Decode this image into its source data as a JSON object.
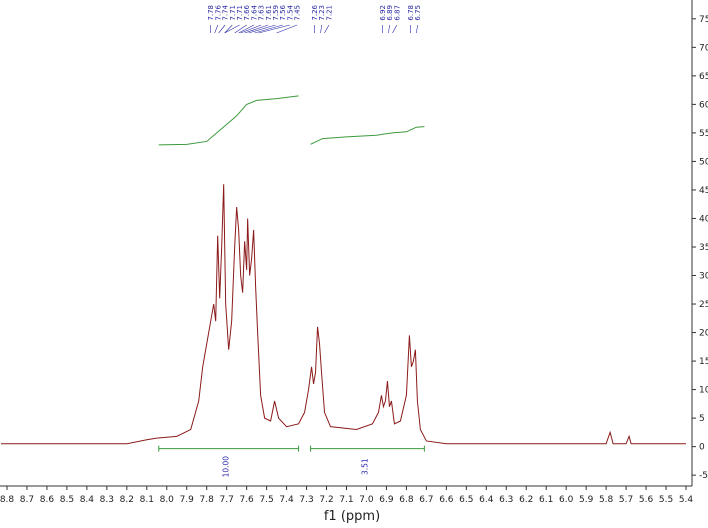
{
  "chart_data": {
    "type": "line",
    "x_label": "f1 (ppm)",
    "xlim": [
      8.835,
      5.38
    ],
    "ylim": [
      -6.9,
      78.3
    ],
    "xticks": [
      8.8,
      8.7,
      8.6,
      8.5,
      8.4,
      8.3,
      8.2,
      8.1,
      {
        "value": 8,
        "label": "8.0"
      },
      7.9,
      7.8,
      7.7,
      7.6,
      7.5,
      7.4,
      7.3,
      7.2,
      7.1,
      {
        "value": 7,
        "label": "7.0"
      },
      6.9,
      6.8,
      6.7,
      6.6,
      6.5,
      6.4,
      6.3,
      6.2,
      6.1,
      {
        "value": 6,
        "label": "6.0"
      },
      5.9,
      5.8,
      5.7,
      5.6,
      5.5,
      5.4
    ],
    "yticks": [
      -5,
      0,
      5,
      10,
      15,
      20,
      25,
      30,
      35,
      40,
      45,
      50,
      55,
      60,
      65,
      70,
      75
    ],
    "x": [
      8.83,
      8.2,
      8.1,
      8.05,
      7.95,
      7.88,
      7.84,
      7.82,
      7.8,
      7.78,
      7.765,
      7.755,
      7.745,
      7.735,
      7.725,
      7.715,
      7.705,
      7.69,
      7.675,
      7.66,
      7.65,
      7.64,
      7.63,
      7.62,
      7.61,
      7.6,
      7.595,
      7.585,
      7.575,
      7.565,
      7.555,
      7.545,
      7.53,
      7.51,
      7.48,
      7.46,
      7.44,
      7.4,
      7.34,
      7.31,
      7.29,
      7.275,
      7.265,
      7.255,
      7.245,
      7.235,
      7.225,
      7.21,
      7.18,
      7.05,
      6.97,
      6.94,
      6.925,
      6.915,
      6.905,
      6.895,
      6.885,
      6.875,
      6.86,
      6.83,
      6.8,
      6.79,
      6.785,
      6.775,
      6.765,
      6.755,
      6.745,
      6.73,
      6.7,
      6.6,
      5.8,
      5.78,
      5.765,
      5.7,
      5.685,
      5.675,
      5.4
    ],
    "series": [
      {
        "color": "#8b1a1a",
        "values": [
          0.5,
          0.5,
          1.2,
          1.5,
          1.8,
          3,
          8,
          14,
          18,
          22,
          25,
          22,
          37,
          26,
          35,
          46,
          25,
          17,
          22,
          35,
          42,
          38,
          30,
          27,
          36,
          31,
          40,
          30,
          33,
          38,
          28,
          20,
          9,
          5,
          4.5,
          8,
          5,
          3.5,
          4,
          6,
          10,
          14,
          11,
          13,
          21,
          18,
          13,
          6,
          3.5,
          3,
          4,
          6,
          9,
          7,
          8,
          11.5,
          7,
          8,
          4,
          4.5,
          9,
          16,
          19.5,
          14,
          15,
          17,
          8,
          3,
          1,
          0.5,
          0.5,
          2.5,
          0.5,
          0.5,
          1.8,
          0.5,
          0.5
        ]
      }
    ],
    "peak_labels": [
      7.78,
      7.76,
      7.74,
      7.71,
      7.71,
      7.66,
      7.64,
      7.63,
      7.61,
      7.59,
      7.56,
      7.54,
      7.45,
      7.26,
      7.23,
      7.21,
      6.92,
      6.89,
      6.87,
      6.78,
      6.75
    ],
    "integrals": [
      {
        "range": [
          8.04,
          7.34
        ],
        "value": {
          "value": 10,
          "label": "10.00"
        },
        "color": "#3c9a3c",
        "curve_x": [
          8.04,
          7.9,
          7.8,
          7.75,
          7.7,
          7.65,
          7.6,
          7.55,
          7.45,
          7.34
        ],
        "curve_y": [
          52.9,
          53,
          53.5,
          55,
          56.5,
          58,
          60,
          60.7,
          61,
          61.5
        ]
      },
      {
        "range": [
          7.28,
          6.71
        ],
        "value": 3.51,
        "color": "#3c9a3c",
        "curve_x": [
          7.28,
          7.22,
          7.1,
          6.95,
          6.87,
          6.8,
          6.75,
          6.71
        ],
        "curve_y": [
          53,
          54,
          54.3,
          54.6,
          55,
          55.2,
          56,
          56.1
        ]
      }
    ]
  }
}
